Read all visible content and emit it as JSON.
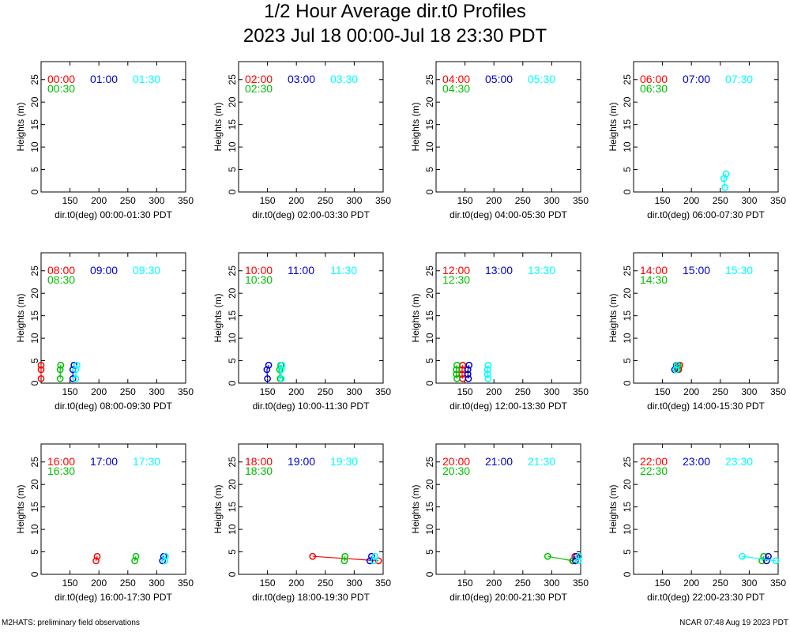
{
  "page": {
    "title": "1/2 Hour Average dir.t0 Profiles",
    "subtitle": "2023 Jul 18 00:00-Jul 18 23:30 PDT",
    "footer_left": "M2HATS: preliminary field observations",
    "footer_right": "NCAR 07:48 Aug 19 2023 PDT"
  },
  "colors": {
    "first": "#ff0000",
    "second": "#00c000",
    "third": "#0000d0",
    "fourth": "#00ffff"
  },
  "chart_data": [
    {
      "type": "line",
      "xlabel": "dir.t0(deg) 00:00-01:30 PDT",
      "ylabel": "Heights (m)",
      "xlim": [
        100,
        350
      ],
      "ylim": [
        0,
        29
      ],
      "xticks": [
        150,
        200,
        250,
        300,
        350
      ],
      "yticks": [
        0,
        5,
        10,
        15,
        20,
        25
      ],
      "series": [
        {
          "name": "00:00",
          "color": "#ff0000",
          "points": []
        },
        {
          "name": "00:30",
          "color": "#00c000",
          "points": []
        },
        {
          "name": "01:00",
          "color": "#0000d0",
          "points": []
        },
        {
          "name": "01:30",
          "color": "#00ffff",
          "points": []
        }
      ]
    },
    {
      "type": "line",
      "xlabel": "dir.t0(deg) 02:00-03:30 PDT",
      "ylabel": "Heights (m)",
      "xlim": [
        100,
        350
      ],
      "ylim": [
        0,
        29
      ],
      "xticks": [
        150,
        200,
        250,
        300,
        350
      ],
      "yticks": [
        0,
        5,
        10,
        15,
        20,
        25
      ],
      "series": [
        {
          "name": "02:00",
          "color": "#ff0000",
          "points": []
        },
        {
          "name": "02:30",
          "color": "#00c000",
          "points": []
        },
        {
          "name": "03:00",
          "color": "#0000d0",
          "points": []
        },
        {
          "name": "03:30",
          "color": "#00ffff",
          "points": []
        }
      ]
    },
    {
      "type": "line",
      "xlabel": "dir.t0(deg) 04:00-05:30 PDT",
      "ylabel": "Heights (m)",
      "xlim": [
        100,
        350
      ],
      "ylim": [
        0,
        29
      ],
      "xticks": [
        150,
        200,
        250,
        300,
        350
      ],
      "yticks": [
        0,
        5,
        10,
        15,
        20,
        25
      ],
      "series": [
        {
          "name": "04:00",
          "color": "#ff0000",
          "points": []
        },
        {
          "name": "04:30",
          "color": "#00c000",
          "points": []
        },
        {
          "name": "05:00",
          "color": "#0000d0",
          "points": []
        },
        {
          "name": "05:30",
          "color": "#00ffff",
          "points": []
        }
      ]
    },
    {
      "type": "line",
      "xlabel": "dir.t0(deg) 06:00-07:30 PDT",
      "ylabel": "Heights (m)",
      "xlim": [
        100,
        350
      ],
      "ylim": [
        0,
        29
      ],
      "xticks": [
        150,
        200,
        250,
        300,
        350
      ],
      "yticks": [
        0,
        5,
        10,
        15,
        20,
        25
      ],
      "series": [
        {
          "name": "06:00",
          "color": "#ff0000",
          "points": []
        },
        {
          "name": "06:30",
          "color": "#00c000",
          "points": []
        },
        {
          "name": "07:00",
          "color": "#0000d0",
          "points": []
        },
        {
          "name": "07:30",
          "color": "#00ffff",
          "points": [
            [
              258,
              1
            ],
            [
              256,
              3
            ],
            [
              260,
              4
            ]
          ]
        }
      ]
    },
    {
      "type": "line",
      "xlabel": "dir.t0(deg) 08:00-09:30 PDT",
      "ylabel": "Heights (m)",
      "xlim": [
        100,
        350
      ],
      "ylim": [
        0,
        29
      ],
      "xticks": [
        150,
        200,
        250,
        300,
        350
      ],
      "yticks": [
        0,
        5,
        10,
        15,
        20,
        25
      ],
      "series": [
        {
          "name": "08:00",
          "color": "#ff0000",
          "points": [
            [
              100,
              1
            ],
            [
              100,
              3
            ],
            [
              100,
              4
            ]
          ]
        },
        {
          "name": "08:30",
          "color": "#00c000",
          "points": [
            [
              133,
              1
            ],
            [
              133,
              3
            ],
            [
              134,
              4
            ]
          ]
        },
        {
          "name": "09:00",
          "color": "#0000d0",
          "points": [
            [
              155,
              1
            ],
            [
              155,
              3
            ],
            [
              157,
              4
            ]
          ]
        },
        {
          "name": "09:30",
          "color": "#00ffff",
          "points": [
            [
              160,
              1
            ],
            [
              160,
              3
            ],
            [
              162,
              4
            ]
          ]
        }
      ]
    },
    {
      "type": "line",
      "xlabel": "dir.t0(deg) 10:00-11:30 PDT",
      "ylabel": "Heights (m)",
      "xlim": [
        100,
        350
      ],
      "ylim": [
        0,
        29
      ],
      "xticks": [
        150,
        200,
        250,
        300,
        350
      ],
      "yticks": [
        0,
        5,
        10,
        15,
        20,
        25
      ],
      "series": [
        {
          "name": "10:00",
          "color": "#ff0000",
          "points": []
        },
        {
          "name": "10:30",
          "color": "#00c000",
          "points": [
            [
              172,
              1
            ],
            [
              171,
              3
            ],
            [
              173,
              4
            ]
          ]
        },
        {
          "name": "11:00",
          "color": "#0000d0",
          "points": [
            [
              150,
              1
            ],
            [
              149,
              3
            ],
            [
              152,
              4
            ]
          ]
        },
        {
          "name": "11:30",
          "color": "#00ffff",
          "points": [
            [
              174,
              1
            ],
            [
              174,
              3
            ],
            [
              175,
              4
            ]
          ]
        }
      ]
    },
    {
      "type": "line",
      "xlabel": "dir.t0(deg) 12:00-13:30 PDT",
      "ylabel": "Heights (m)",
      "xlim": [
        100,
        350
      ],
      "ylim": [
        0,
        29
      ],
      "xticks": [
        150,
        200,
        250,
        300,
        350
      ],
      "yticks": [
        0,
        5,
        10,
        15,
        20,
        25
      ],
      "series": [
        {
          "name": "12:00",
          "color": "#ff0000",
          "points": [
            [
              146,
              1
            ],
            [
              145,
              2
            ],
            [
              145,
              3
            ],
            [
              146,
              4
            ]
          ]
        },
        {
          "name": "12:30",
          "color": "#00c000",
          "points": [
            [
              136,
              1
            ],
            [
              135,
              2
            ],
            [
              135,
              3
            ],
            [
              136,
              4
            ]
          ]
        },
        {
          "name": "13:00",
          "color": "#0000d0",
          "points": [
            [
              156,
              1
            ],
            [
              155,
              2
            ],
            [
              155,
              3
            ],
            [
              157,
              4
            ]
          ]
        },
        {
          "name": "13:30",
          "color": "#00ffff",
          "points": [
            [
              190,
              1
            ],
            [
              189,
              2
            ],
            [
              189,
              3
            ],
            [
              190,
              4
            ]
          ]
        }
      ]
    },
    {
      "type": "line",
      "xlabel": "dir.t0(deg) 14:00-15:30 PDT",
      "ylabel": "Heights (m)",
      "xlim": [
        100,
        350
      ],
      "ylim": [
        0,
        29
      ],
      "xticks": [
        150,
        200,
        250,
        300,
        350
      ],
      "yticks": [
        0,
        5,
        10,
        15,
        20,
        25
      ],
      "series": [
        {
          "name": "14:00",
          "color": "#ff0000",
          "points": [
            [
              178,
              3
            ],
            [
              180,
              4
            ]
          ]
        },
        {
          "name": "14:30",
          "color": "#00c000",
          "points": [
            [
              176,
              3
            ],
            [
              177,
              4
            ]
          ]
        },
        {
          "name": "15:00",
          "color": "#0000d0",
          "points": [
            [
              171,
              3
            ],
            [
              174,
              4
            ]
          ]
        },
        {
          "name": "15:30",
          "color": "#00ffff",
          "points": [
            [
              173,
              3
            ],
            [
              175,
              4
            ]
          ]
        }
      ]
    },
    {
      "type": "line",
      "xlabel": "dir.t0(deg) 16:00-17:30 PDT",
      "ylabel": "Heights (m)",
      "xlim": [
        100,
        350
      ],
      "ylim": [
        0,
        29
      ],
      "xticks": [
        150,
        200,
        250,
        300,
        350
      ],
      "yticks": [
        0,
        5,
        10,
        15,
        20,
        25
      ],
      "series": [
        {
          "name": "16:00",
          "color": "#ff0000",
          "points": [
            [
              195,
              3
            ],
            [
              197,
              4
            ]
          ]
        },
        {
          "name": "16:30",
          "color": "#00c000",
          "points": [
            [
              262,
              3
            ],
            [
              264,
              4
            ]
          ]
        },
        {
          "name": "17:00",
          "color": "#0000d0",
          "points": [
            [
              310,
              3
            ],
            [
              312,
              4
            ]
          ]
        },
        {
          "name": "17:30",
          "color": "#00ffff",
          "points": [
            [
              314,
              3
            ],
            [
              315,
              4
            ]
          ]
        }
      ]
    },
    {
      "type": "line",
      "xlabel": "dir.t0(deg) 18:00-19:30 PDT",
      "ylabel": "Heights (m)",
      "xlim": [
        100,
        350
      ],
      "ylim": [
        0,
        29
      ],
      "xticks": [
        150,
        200,
        250,
        300,
        350
      ],
      "yticks": [
        0,
        5,
        10,
        15,
        20,
        25
      ],
      "series": [
        {
          "name": "18:00",
          "color": "#ff0000",
          "points": [
            [
              342,
              3
            ],
            [
              228,
              4
            ]
          ]
        },
        {
          "name": "18:30",
          "color": "#00c000",
          "points": [
            [
              283,
              3
            ],
            [
              284,
              4
            ]
          ]
        },
        {
          "name": "19:00",
          "color": "#0000d0",
          "points": [
            [
              327,
              3
            ],
            [
              330,
              4
            ]
          ]
        },
        {
          "name": "19:30",
          "color": "#00ffff",
          "points": [
            [
              334,
              3
            ],
            [
              336,
              4
            ]
          ]
        }
      ]
    },
    {
      "type": "line",
      "xlabel": "dir.t0(deg) 20:00-21:30 PDT",
      "ylabel": "Heights (m)",
      "xlim": [
        100,
        350
      ],
      "ylim": [
        0,
        29
      ],
      "xticks": [
        150,
        200,
        250,
        300,
        350
      ],
      "yticks": [
        0,
        5,
        10,
        15,
        20,
        25
      ],
      "series": [
        {
          "name": "20:00",
          "color": "#ff0000",
          "points": [
            [
              337,
              3
            ],
            [
              340,
              4
            ]
          ]
        },
        {
          "name": "20:30",
          "color": "#00c000",
          "points": [
            [
              336,
              3
            ],
            [
              293,
              4
            ]
          ]
        },
        {
          "name": "21:00",
          "color": "#0000d0",
          "points": [
            [
              341,
              3
            ],
            [
              343,
              4
            ]
          ]
        },
        {
          "name": "21:30",
          "color": "#00ffff",
          "points": [
            [
              346,
              3
            ],
            [
              347,
              4
            ]
          ]
        }
      ]
    },
    {
      "type": "line",
      "xlabel": "dir.t0(deg) 22:00-23:30 PDT",
      "ylabel": "Heights (m)",
      "xlim": [
        100,
        350
      ],
      "ylim": [
        0,
        29
      ],
      "xticks": [
        150,
        200,
        250,
        300,
        350
      ],
      "yticks": [
        0,
        5,
        10,
        15,
        20,
        25
      ],
      "series": [
        {
          "name": "22:00",
          "color": "#ff0000",
          "points": []
        },
        {
          "name": "22:30",
          "color": "#00c000",
          "points": [
            [
              322,
              3
            ],
            [
              325,
              4
            ]
          ]
        },
        {
          "name": "23:00",
          "color": "#0000d0",
          "points": [
            [
              330,
              3
            ],
            [
              333,
              4
            ]
          ]
        },
        {
          "name": "23:30",
          "color": "#00ffff",
          "points": [
            [
              346,
              3
            ],
            [
              288,
              4
            ]
          ]
        }
      ]
    }
  ]
}
